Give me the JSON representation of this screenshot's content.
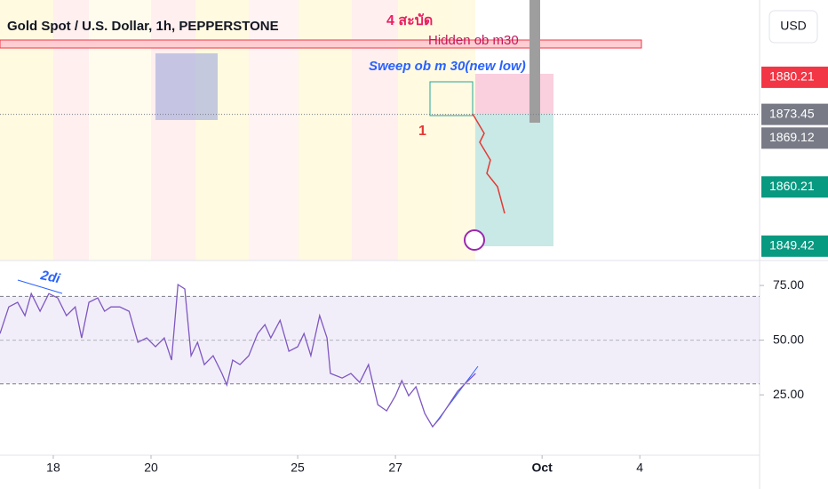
{
  "chart_data": [
    {
      "type": "price",
      "title": "Gold Spot / U.S. Dollar, 1h, PEPPERSTONE",
      "currency": "USD",
      "ylim": [
        1846.8,
        1894.3
      ],
      "price_labels": [
        1880.21,
        1873.45,
        1869.12,
        1860.21,
        1849.42
      ],
      "price_label_colors": [
        "#f23645",
        "#787b86",
        "#787b86",
        "#089981",
        "#089981"
      ],
      "current_price": 1873.45,
      "annotations": [
        "4 สะบัด",
        "Hidden ob m30",
        "Sweep ob m 30(new low)",
        "1",
        "2di"
      ]
    },
    {
      "type": "line",
      "color": "#7e57c2",
      "xlim": [
        -1.09,
        14.45
      ],
      "ylim": [
        -2.6,
        85.6
      ],
      "xticks": [
        {
          "value": 0,
          "label": "18"
        },
        {
          "value": 2,
          "label": "20"
        },
        {
          "value": 5,
          "label": "25"
        },
        {
          "value": 7,
          "label": "27"
        },
        {
          "value": 10,
          "label": "Oct"
        },
        {
          "value": 12,
          "label": "4"
        }
      ],
      "yticks": [
        {
          "value": 75,
          "label": "75.00"
        },
        {
          "value": 50,
          "label": "50.00"
        },
        {
          "value": 25,
          "label": "25.00"
        }
      ],
      "band": [
        30,
        70
      ],
      "x": [
        -1.09,
        -0.91,
        -0.73,
        -0.58,
        -0.45,
        -0.27,
        -0.09,
        0.09,
        0.27,
        0.45,
        0.58,
        0.73,
        0.91,
        1.05,
        1.18,
        1.36,
        1.55,
        1.73,
        1.91,
        2.09,
        2.27,
        2.42,
        2.55,
        2.69,
        2.82,
        2.95,
        3.09,
        3.27,
        3.45,
        3.55,
        3.67,
        3.82,
        4.0,
        4.18,
        4.33,
        4.45,
        4.64,
        4.82,
        5.0,
        5.13,
        5.27,
        5.45,
        5.6,
        5.67,
        5.91,
        6.09,
        6.27,
        6.45,
        6.64,
        6.82,
        7.0,
        7.13,
        7.27,
        7.42,
        7.6,
        7.76,
        7.91,
        8.09,
        8.27,
        8.45,
        8.64
      ],
      "values": [
        53.0,
        65.2,
        67.3,
        61.2,
        71.3,
        63.2,
        71.3,
        69.3,
        61.2,
        65.2,
        51.0,
        67.3,
        69.3,
        63.2,
        65.2,
        65.2,
        63.2,
        49.0,
        51.0,
        47.0,
        51.0,
        40.9,
        75.4,
        73.4,
        42.9,
        49.0,
        38.8,
        42.9,
        34.8,
        29.5,
        40.9,
        38.8,
        42.9,
        53.0,
        57.1,
        51.0,
        59.1,
        44.9,
        47.0,
        53.0,
        42.9,
        61.2,
        51.0,
        34.8,
        32.7,
        34.8,
        30.7,
        38.8,
        20.5,
        17.7,
        24.6,
        31.5,
        24.6,
        28.7,
        16.5,
        10.4,
        14.4,
        20.5,
        26.6,
        30.7,
        34.8
      ]
    }
  ]
}
